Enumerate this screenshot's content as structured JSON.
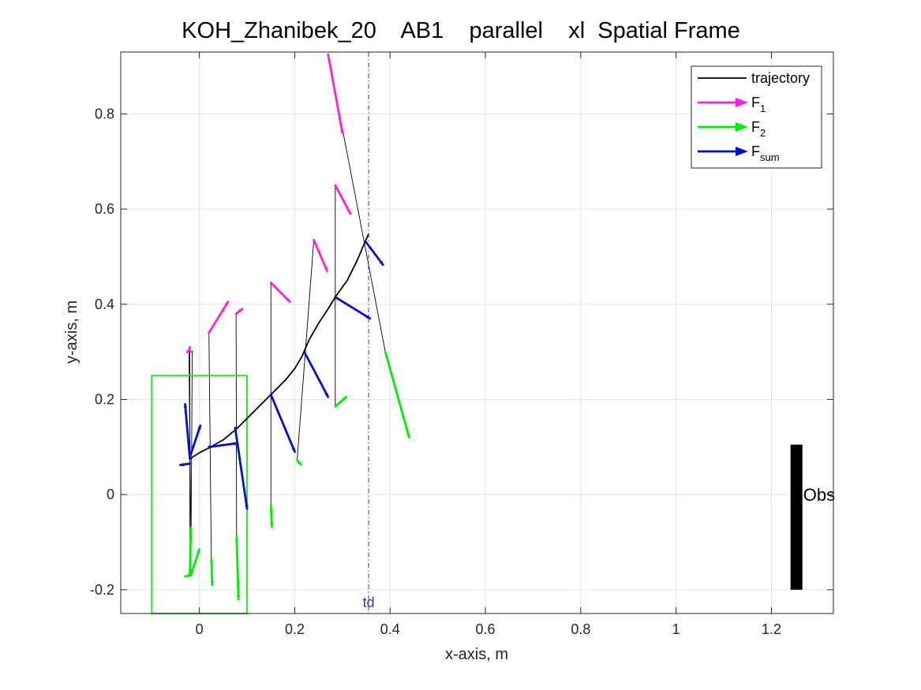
{
  "colors": {
    "trajectory": "#000000",
    "F1": "#ff1fd6",
    "F2": "#00ee00",
    "Fsum": "#0010d0",
    "td_line": "#2a3aa8",
    "start_box": "#33dd33",
    "obstacle": "#000000",
    "grid": "#e4e4e4"
  },
  "chart_data": {
    "type": "line",
    "title": "KOH_Zhanibek_20    AB1    parallel    xl  Spatial Frame",
    "xlabel": "x-axis, m",
    "ylabel": "y-axis, m",
    "xlim": [
      -0.165,
      1.33
    ],
    "ylim": [
      -0.25,
      0.93
    ],
    "xticks": [
      0,
      0.2,
      0.4,
      0.6,
      0.8,
      1,
      1.2
    ],
    "xtick_labels": [
      "0",
      "0.2",
      "0.4",
      "0.6",
      "0.8",
      "1",
      "1.2"
    ],
    "yticks": [
      -0.2,
      0,
      0.2,
      0.4,
      0.6,
      0.8
    ],
    "ytick_labels": [
      "-0.2",
      "0",
      "0.2",
      "0.4",
      "0.6",
      "0.8"
    ],
    "grid": true,
    "legend_position": "top-right",
    "legend": [
      {
        "key": "trajectory",
        "label": "trajectory",
        "sub": ""
      },
      {
        "key": "F1",
        "label": "F",
        "sub": "1"
      },
      {
        "key": "F2",
        "label": "F",
        "sub": "2"
      },
      {
        "key": "Fsum",
        "label": "F",
        "sub": "sum"
      }
    ],
    "trajectory": [
      [
        -0.02,
        0.075
      ],
      [
        0.0,
        0.088
      ],
      [
        0.02,
        0.098
      ],
      [
        0.05,
        0.115
      ],
      [
        0.08,
        0.14
      ],
      [
        0.12,
        0.18
      ],
      [
        0.15,
        0.21
      ],
      [
        0.18,
        0.24
      ],
      [
        0.2,
        0.265
      ],
      [
        0.215,
        0.29
      ],
      [
        0.23,
        0.325
      ],
      [
        0.25,
        0.36
      ],
      [
        0.27,
        0.39
      ],
      [
        0.285,
        0.415
      ],
      [
        0.31,
        0.45
      ],
      [
        0.33,
        0.49
      ],
      [
        0.345,
        0.525
      ],
      [
        0.355,
        0.548
      ]
    ],
    "samples": [
      {
        "pos": [
          -0.02,
          0.075
        ],
        "F1": [
          -0.022,
          0.3,
          -0.02,
          0.31
        ],
        "F2": [
          -0.018,
          -0.07,
          -0.02,
          -0.17
        ],
        "Fsum": [
          -0.02,
          0.075,
          -0.03,
          0.19
        ]
      },
      {
        "pos": [
          -0.02,
          0.065
        ],
        "F1": [
          -0.02,
          0.3,
          -0.02,
          0.3
        ],
        "F2": [
          -0.02,
          -0.17,
          -0.03,
          -0.172
        ],
        "Fsum": [
          -0.02,
          0.065,
          -0.04,
          0.062
        ]
      },
      {
        "pos": [
          -0.018,
          0.085
        ],
        "F1": [
          -0.015,
          0.3,
          -0.015,
          0.3
        ],
        "F2": [
          -0.018,
          -0.17,
          0.0,
          -0.115
        ],
        "Fsum": [
          -0.018,
          0.085,
          0.002,
          0.145
        ]
      },
      {
        "pos": [
          0.02,
          0.1
        ],
        "F1": [
          0.02,
          0.34,
          0.06,
          0.405
        ],
        "F2": [
          0.025,
          -0.135,
          0.027,
          -0.19
        ],
        "Fsum": [
          0.02,
          0.1,
          0.08,
          0.108
        ]
      },
      {
        "pos": [
          0.075,
          0.14
        ],
        "F1": [
          0.077,
          0.38,
          0.09,
          0.39
        ],
        "F2": [
          0.078,
          -0.09,
          0.082,
          -0.22
        ],
        "Fsum": [
          0.075,
          0.14,
          0.1,
          -0.03
        ]
      },
      {
        "pos": [
          0.15,
          0.21
        ],
        "F1": [
          0.15,
          0.445,
          0.19,
          0.405
        ],
        "F2": [
          0.15,
          -0.025,
          0.152,
          -0.068
        ],
        "Fsum": [
          0.15,
          0.21,
          0.2,
          0.09
        ]
      },
      {
        "pos": [
          0.22,
          0.3
        ],
        "F1": [
          0.24,
          0.535,
          0.268,
          0.47
        ],
        "F2": [
          0.205,
          0.072,
          0.213,
          0.063
        ],
        "Fsum": [
          0.22,
          0.3,
          0.27,
          0.205
        ]
      },
      {
        "pos": [
          0.285,
          0.415
        ],
        "F1": [
          0.285,
          0.65,
          0.317,
          0.59
        ],
        "F2": [
          0.285,
          0.185,
          0.308,
          0.205
        ],
        "Fsum": [
          0.285,
          0.415,
          0.358,
          0.37
        ]
      },
      {
        "pos": [
          0.35,
          0.53
        ],
        "F1": [
          0.27,
          0.925,
          0.3,
          0.76
        ],
        "F2": [
          0.39,
          0.3,
          0.44,
          0.12
        ],
        "Fsum": [
          0.35,
          0.53,
          0.385,
          0.483
        ]
      }
    ],
    "td": {
      "x": 0.355,
      "label": "td"
    },
    "start_box": {
      "x": [
        -0.1,
        0.1
      ],
      "y": [
        -0.25,
        0.25
      ]
    },
    "obstacle": {
      "x": [
        1.245,
        1.26
      ],
      "y": [
        -0.2,
        0.105
      ],
      "label": "Obs"
    }
  }
}
